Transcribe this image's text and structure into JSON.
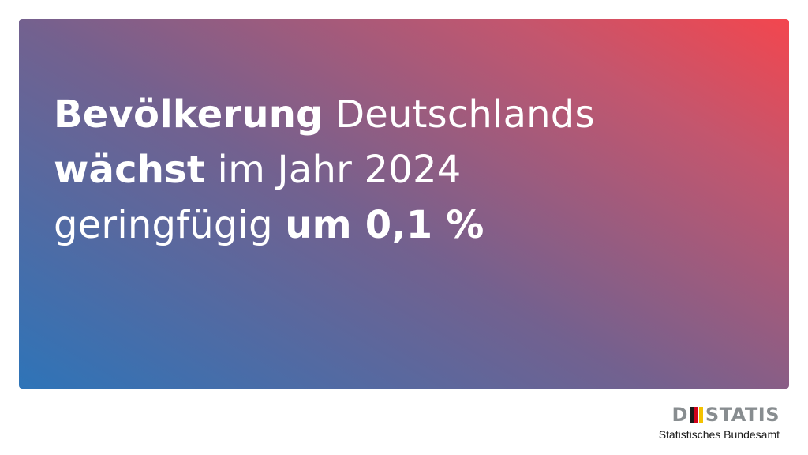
{
  "headline": {
    "line1": {
      "bold": "Bevölkerung",
      "regular": " Deutschlands"
    },
    "line2": {
      "bold": "wächst",
      "regular": " im Jahr 2024"
    },
    "line3": {
      "regular": "geringfügig ",
      "bold": "um 0,1 %"
    }
  },
  "banner": {
    "gradient_colors": [
      "#2e74b8",
      "#73618f",
      "#c3566e",
      "#f3464e"
    ]
  },
  "logo": {
    "wordmark_first": "D",
    "wordmark_rest": "STATIS",
    "subtitle": "Statistisches Bundesamt",
    "flag_colors": [
      "#1a1a1a",
      "#d0021b",
      "#f4c200"
    ],
    "wordmark_color": "#888d90"
  }
}
